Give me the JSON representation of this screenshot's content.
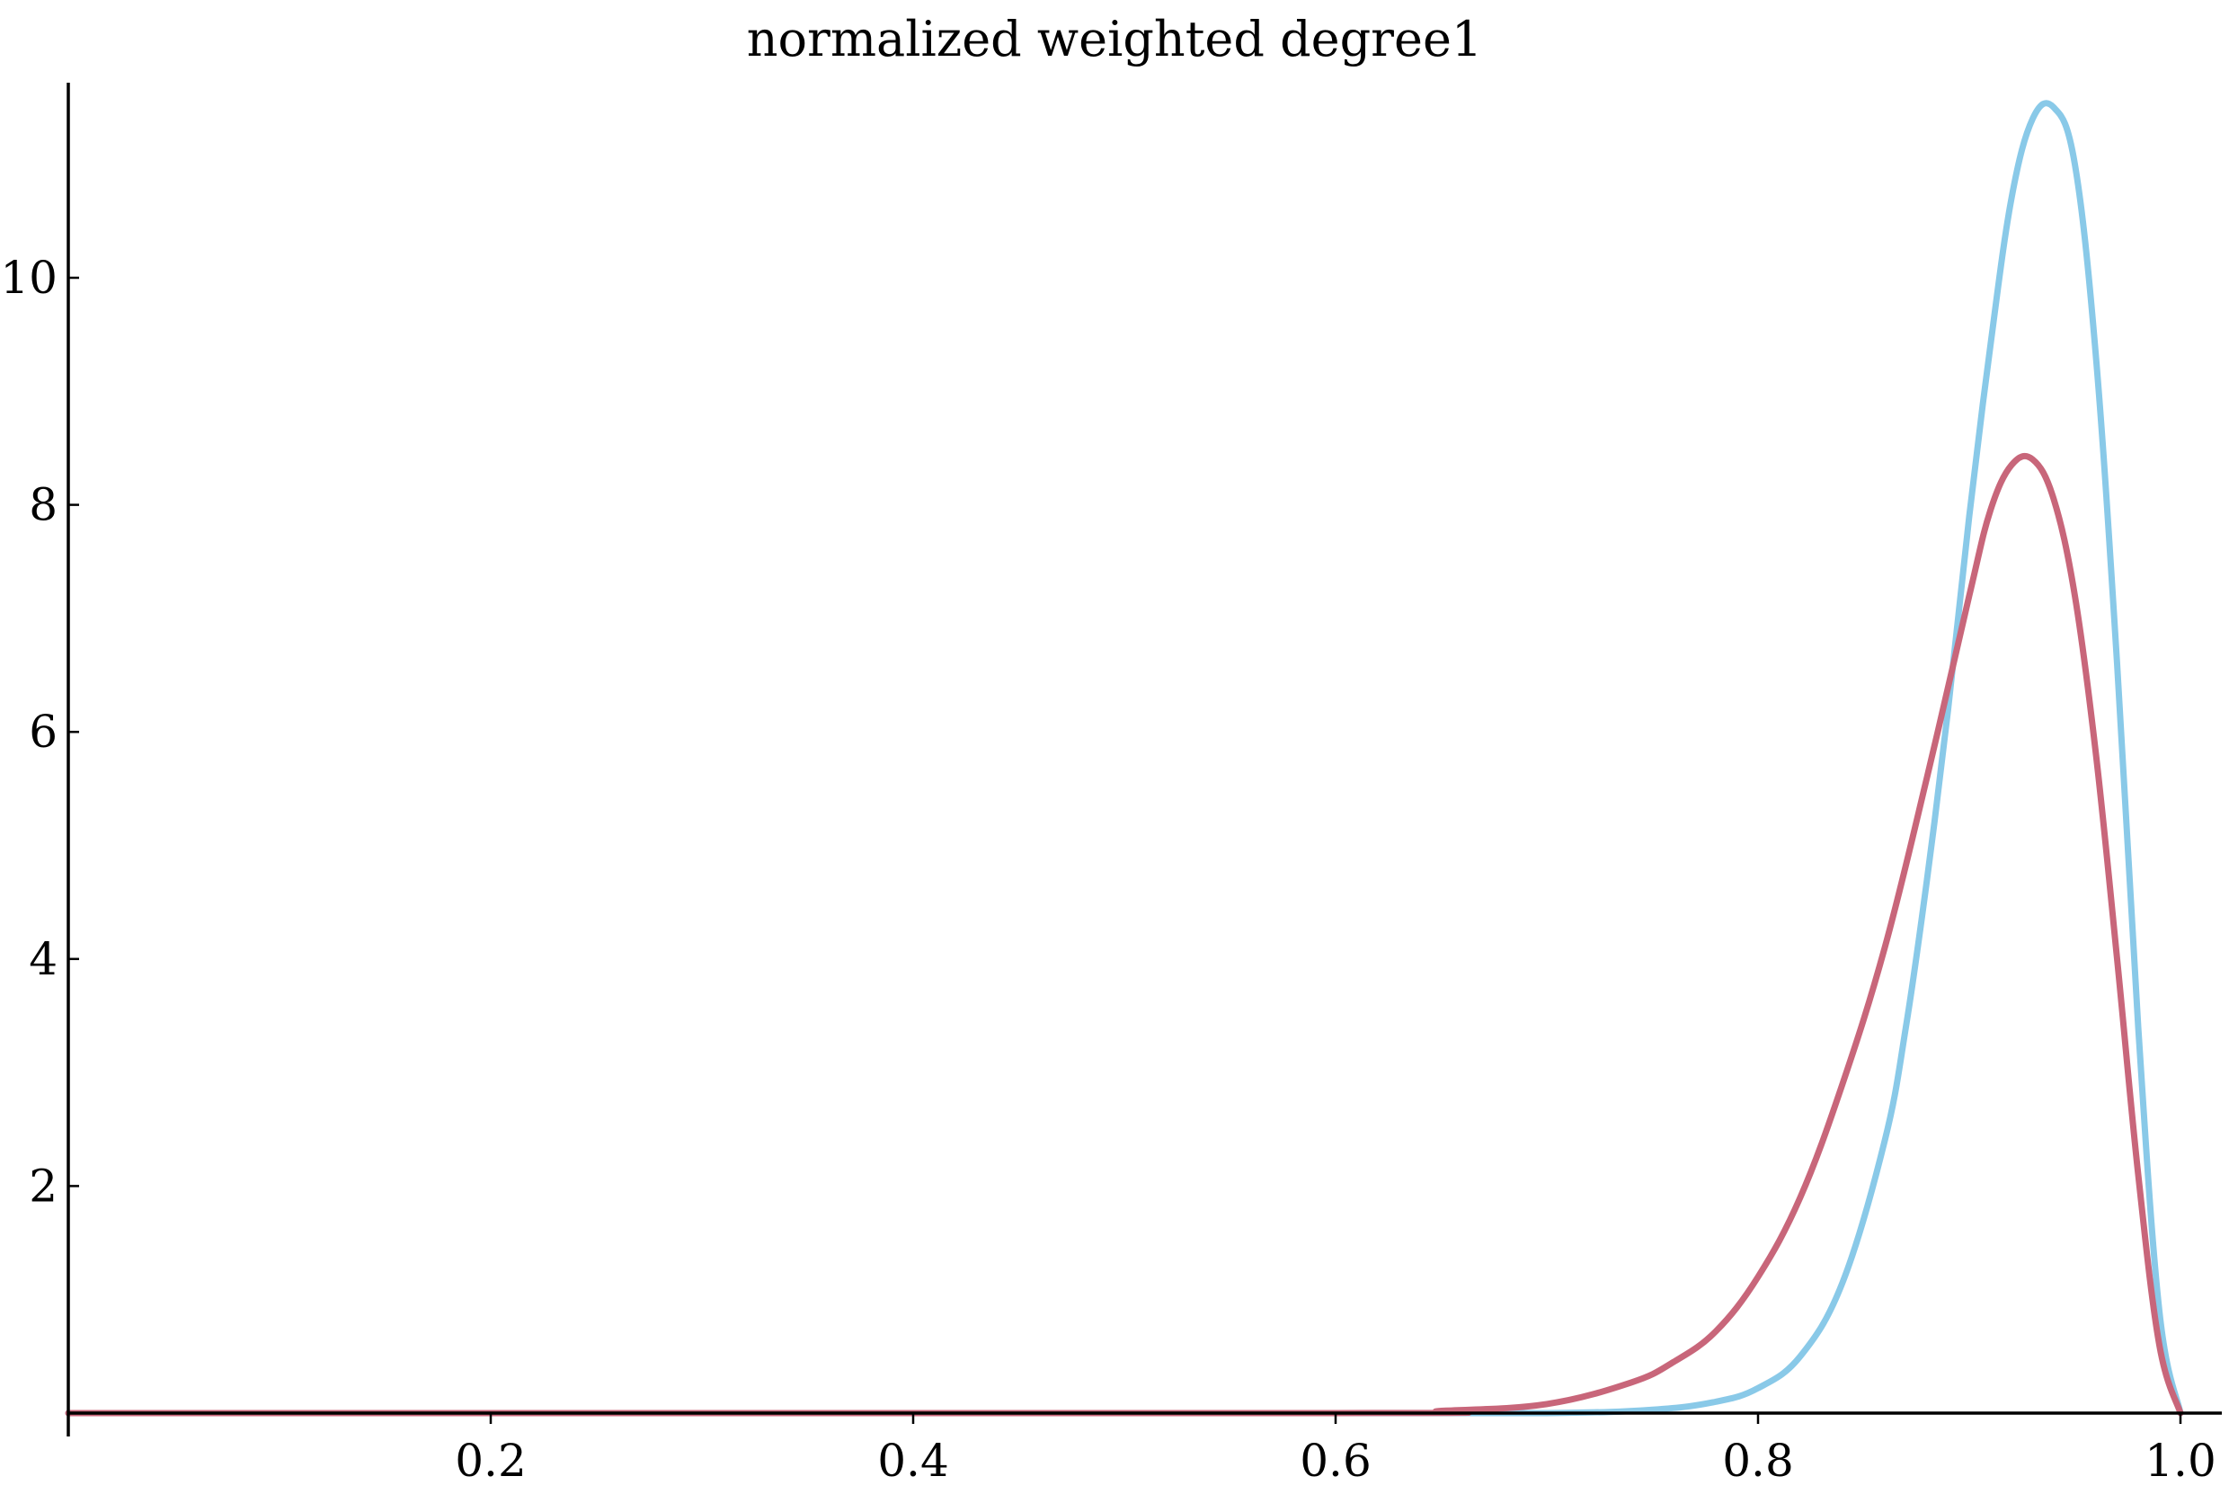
{
  "chart_data": {
    "type": "line",
    "title": "normalized weighted degree1",
    "xlabel": "",
    "ylabel": "",
    "xlim": [
      0,
      1.0
    ],
    "ylim": [
      0,
      11.8
    ],
    "x_ticks": [
      {
        "value": 0.2,
        "label": "0.2"
      },
      {
        "value": 0.4,
        "label": "0.4"
      },
      {
        "value": 0.6,
        "label": "0.6"
      },
      {
        "value": 0.8,
        "label": "0.8"
      },
      {
        "value": 1.0,
        "label": "1.0"
      }
    ],
    "y_ticks": [
      {
        "value": 2,
        "label": "2"
      },
      {
        "value": 4,
        "label": "4"
      },
      {
        "value": 6,
        "label": "6"
      },
      {
        "value": 8,
        "label": "8"
      },
      {
        "value": 10,
        "label": "10"
      }
    ],
    "grid": false,
    "series": [
      {
        "color": "#89c9e8",
        "x": [
          0.0,
          0.6,
          0.7,
          0.75,
          0.78,
          0.8,
          0.82,
          0.84,
          0.86,
          0.87,
          0.88,
          0.89,
          0.9,
          0.91,
          0.92,
          0.93,
          0.94,
          0.95,
          0.96,
          0.97,
          0.98,
          0.99,
          1.0
        ],
        "y": [
          0,
          0,
          0.0,
          0.03,
          0.1,
          0.22,
          0.5,
          1.15,
          2.4,
          3.4,
          4.7,
          6.2,
          7.9,
          9.4,
          10.7,
          11.4,
          11.5,
          11.0,
          9.3,
          6.6,
          3.4,
          0.9,
          0
        ]
      },
      {
        "color": "#c8667a",
        "x": [
          0.0,
          0.6,
          0.65,
          0.7,
          0.74,
          0.76,
          0.78,
          0.8,
          0.82,
          0.84,
          0.86,
          0.88,
          0.9,
          0.91,
          0.92,
          0.93,
          0.94,
          0.95,
          0.96,
          0.97,
          0.98,
          0.99,
          1.0
        ],
        "y": [
          0,
          0,
          0.02,
          0.08,
          0.27,
          0.45,
          0.72,
          1.2,
          1.9,
          2.9,
          4.1,
          5.6,
          7.2,
          7.95,
          8.35,
          8.4,
          8.05,
          7.2,
          5.8,
          4.0,
          2.1,
          0.6,
          0
        ]
      }
    ]
  }
}
